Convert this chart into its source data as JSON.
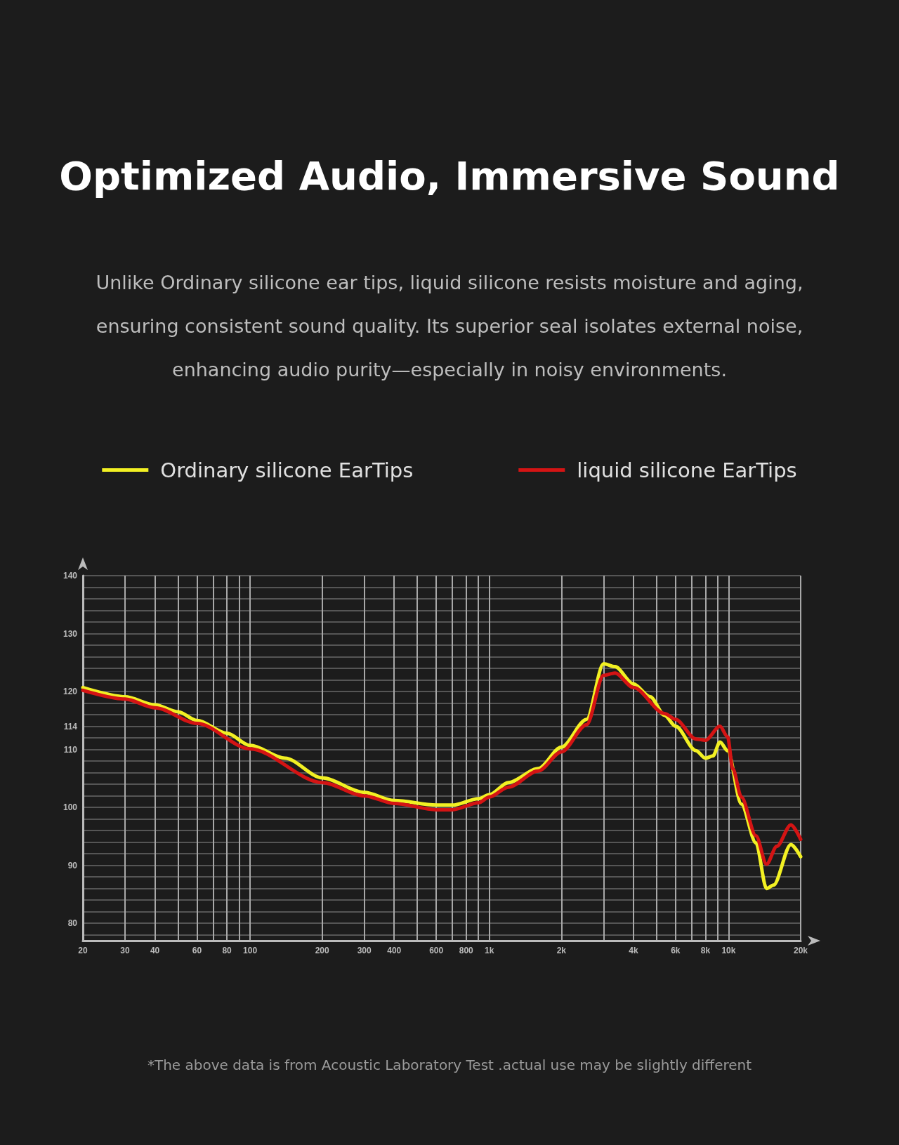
{
  "chart_data": {
    "type": "line",
    "title": "Optimized Audio, Immersive Sound",
    "subtitle": "Unlike Ordinary silicone ear tips, liquid silicone resists moisture and aging, ensuring consistent sound quality. Its superior seal isolates external noise, enhancing audio purity—especially in noisy environments.",
    "annotations": [
      "*The above data is from Acoustic Laboratory Test .actual use may be slightly different"
    ],
    "log": "x",
    "grid": true,
    "legend": "top",
    "marker": "none",
    "line_style": "solid",
    "xlim": [
      20,
      20000
    ],
    "ylim": [
      77,
      140
    ],
    "xticks": [
      20,
      30,
      40,
      {
        "value": 50,
        "label": null
      },
      60,
      {
        "value": 70,
        "label": null
      },
      80,
      {
        "value": 90,
        "label": null
      },
      100,
      200,
      300,
      400,
      {
        "value": 500,
        "label": null
      },
      600,
      {
        "value": 700,
        "label": null
      },
      800,
      {
        "value": 900,
        "label": null
      },
      {
        "value": 1000,
        "label": "1k"
      },
      {
        "value": 2000,
        "label": "2k"
      },
      {
        "value": 3000,
        "label": null
      },
      {
        "value": 4000,
        "label": "4k"
      },
      {
        "value": 5000,
        "label": null
      },
      {
        "value": 6000,
        "label": "6k"
      },
      {
        "value": 7000,
        "label": null
      },
      {
        "value": 8000,
        "label": "8k"
      },
      {
        "value": 9000,
        "label": null
      },
      {
        "value": 10000,
        "label": "10k"
      },
      {
        "value": 20000,
        "label": "20k"
      }
    ],
    "yticks": [
      {
        "value": 78,
        "label": null
      },
      80,
      {
        "value": 82,
        "label": null
      },
      {
        "value": 84,
        "label": null
      },
      {
        "value": 86,
        "label": null
      },
      {
        "value": 88,
        "label": null
      },
      90,
      {
        "value": 92,
        "label": null
      },
      {
        "value": 94,
        "label": null
      },
      {
        "value": 96,
        "label": null
      },
      {
        "value": 98,
        "label": null
      },
      100,
      {
        "value": 102,
        "label": null
      },
      {
        "value": 104,
        "label": null
      },
      {
        "value": 106,
        "label": null
      },
      {
        "value": 108,
        "label": null
      },
      110,
      {
        "value": 112,
        "label": null
      },
      114,
      {
        "value": 116,
        "label": null
      },
      {
        "value": 118,
        "label": null
      },
      120,
      {
        "value": 122,
        "label": null
      },
      {
        "value": 124,
        "label": null
      },
      {
        "value": 126,
        "label": null
      },
      {
        "value": 128,
        "label": null
      },
      130,
      {
        "value": 132,
        "label": null
      },
      {
        "value": 134,
        "label": null
      },
      {
        "value": 136,
        "label": null
      },
      {
        "value": 138,
        "label": null
      },
      140
    ],
    "series": [
      {
        "name": "Ordinary silicone EarTips",
        "color": "#f2f023",
        "x": [
          20,
          30,
          40,
          50,
          60,
          80,
          100,
          140,
          200,
          300,
          400,
          600,
          700,
          900,
          1000,
          1200,
          1600,
          2000,
          2550,
          3000,
          3350,
          4000,
          4700,
          5400,
          6000,
          7300,
          8000,
          8600,
          9200,
          9900,
          11300,
          13000,
          14400,
          15400,
          18200,
          20000
        ],
        "values": [
          120.7,
          119.1,
          117.7,
          116.5,
          115,
          112.8,
          110.7,
          108.5,
          105.1,
          102.6,
          101.2,
          100.4,
          100.4,
          101.5,
          102.2,
          104.3,
          106.7,
          110.4,
          115.2,
          124.8,
          124.3,
          121.3,
          119.1,
          115.9,
          114,
          109.8,
          108.5,
          108.9,
          111.3,
          109.8,
          100.6,
          93.9,
          86,
          86.6,
          93.6,
          91.5
        ]
      },
      {
        "name": "liquid silicone EarTips",
        "color": "#d41414",
        "x": [
          20,
          30,
          40,
          60,
          100,
          200,
          300,
          400,
          600,
          700,
          900,
          1000,
          1200,
          1600,
          2000,
          2550,
          3000,
          3350,
          4000,
          5400,
          6000,
          7300,
          8000,
          9200,
          9900,
          10400,
          11300,
          13000,
          14400,
          15900,
          18200,
          20000
        ],
        "values": [
          120.2,
          118.7,
          117.2,
          114.5,
          110.1,
          104.3,
          102,
          100.7,
          99.6,
          99.6,
          100.8,
          101.8,
          103.5,
          106.3,
          109.6,
          114.3,
          122.8,
          123.2,
          120.7,
          116.2,
          115.2,
          111.8,
          111.6,
          114,
          112.2,
          106.7,
          101.8,
          95.1,
          90.2,
          93.3,
          97,
          94.5
        ]
      }
    ]
  }
}
